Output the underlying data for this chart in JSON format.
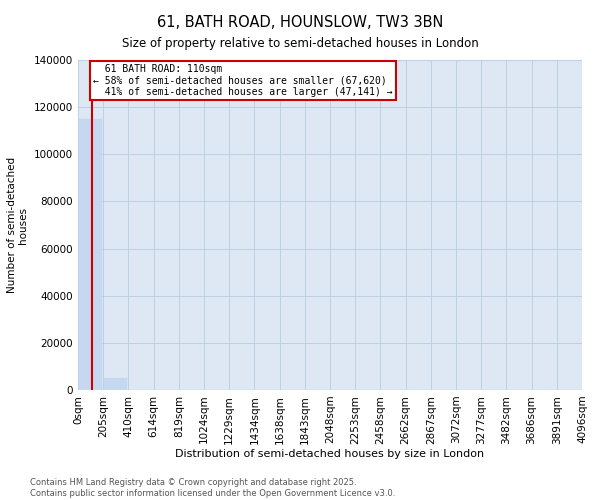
{
  "title": "61, BATH ROAD, HOUNSLOW, TW3 3BN",
  "subtitle": "Size of property relative to semi-detached houses in London",
  "xlabel": "Distribution of semi-detached houses by size in London",
  "ylabel": "Number of semi-detached\nhouses",
  "property_label": "61 BATH ROAD: 110sqm",
  "pct_smaller": 58,
  "count_smaller": 67620,
  "pct_larger": 41,
  "count_larger": 47141,
  "bin_edges": [
    0,
    205,
    410,
    614,
    819,
    1024,
    1229,
    1434,
    1638,
    1843,
    2048,
    2253,
    2458,
    2662,
    2867,
    3072,
    3277,
    3482,
    3686,
    3891,
    4096
  ],
  "bin_labels": [
    "0sqm",
    "205sqm",
    "410sqm",
    "614sqm",
    "819sqm",
    "1024sqm",
    "1229sqm",
    "1434sqm",
    "1638sqm",
    "1843sqm",
    "2048sqm",
    "2253sqm",
    "2458sqm",
    "2662sqm",
    "2867sqm",
    "3072sqm",
    "3277sqm",
    "3482sqm",
    "3686sqm",
    "3891sqm",
    "4096sqm"
  ],
  "bar_heights": [
    114761,
    5000,
    200,
    60,
    20,
    10,
    5,
    3,
    2,
    1,
    1,
    0,
    0,
    0,
    0,
    0,
    0,
    0,
    0,
    0
  ],
  "bar_color": "#c5d8ef",
  "vline_color": "#cc0000",
  "vline_x": 110,
  "annotation_box_color": "#cc0000",
  "plot_bg_color": "#dde8f4",
  "grid_color": "#b8cde0",
  "ylim": [
    0,
    140000
  ],
  "yticks": [
    0,
    20000,
    40000,
    60000,
    80000,
    100000,
    120000,
    140000
  ],
  "footer_line1": "Contains HM Land Registry data © Crown copyright and database right 2025.",
  "footer_line2": "Contains public sector information licensed under the Open Government Licence v3.0."
}
